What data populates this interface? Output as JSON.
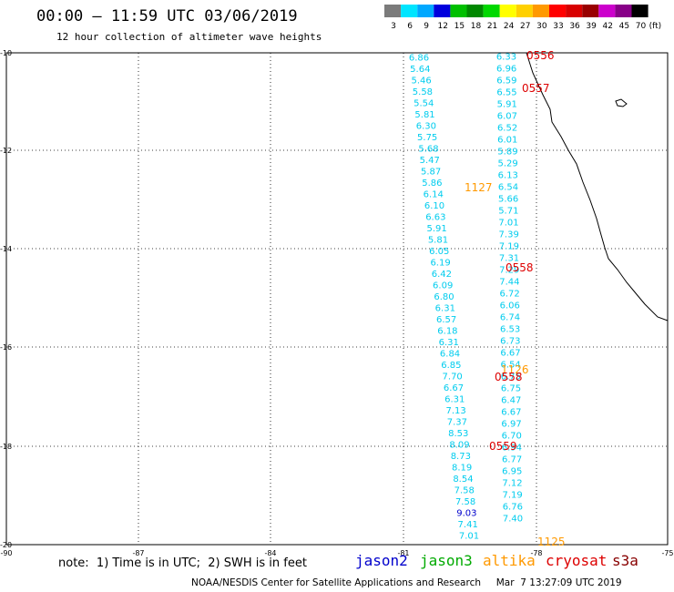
{
  "header": {
    "title": "00:00 – 11:59 UTC 03/06/2019",
    "subtitle": "12 hour collection of altimeter wave heights"
  },
  "colorbar": {
    "unit": "(ft)",
    "labels": [
      "3",
      "6",
      "9",
      "12",
      "15",
      "18",
      "21",
      "24",
      "27",
      "30",
      "33",
      "36",
      "39",
      "42",
      "45",
      "70"
    ],
    "colors": [
      "#7b7b7b",
      "#00e5ff",
      "#00a8ff",
      "#0000dd",
      "#00c000",
      "#008800",
      "#00d800",
      "#ffff00",
      "#ffd000",
      "#ff9900",
      "#ff0000",
      "#d80000",
      "#990000",
      "#cc00cc",
      "#880088",
      "#000000"
    ]
  },
  "axes": {
    "x_ticks": [
      "-90",
      "-87",
      "-84",
      "-81",
      "-78",
      "-75"
    ],
    "y_ticks": [
      "-10",
      "-12",
      "-14",
      "-16",
      "-18",
      "-20"
    ]
  },
  "tracks": [
    {
      "satellite": "cryosat",
      "color": "#00ccee",
      "values": [
        "6.86",
        "5.64",
        "5.46",
        "5.58",
        "5.54",
        "5.81",
        "6.30",
        "5.75",
        "5.68",
        "5.47",
        "5.87",
        "5.86",
        "6.14",
        "6.10",
        "6.63",
        "5.91",
        "5.81",
        "6.05",
        "6.19",
        "6.42",
        "6.09",
        "6.80",
        "6.31",
        "6.57",
        "6.18",
        "6.31",
        "6.84",
        "6.85",
        "7.70",
        "6.67",
        "6.31",
        "7.13",
        "7.37",
        "8.53",
        "8.09",
        "8.73",
        "8.19",
        "8.54",
        "7.58",
        "7.58",
        "9.03",
        "7.41",
        "7.01"
      ]
    },
    {
      "satellite": "cryosat",
      "color": "#00ccee",
      "values": [
        "6.33",
        "6.96",
        "6.59",
        "6.55",
        "5.91",
        "6.07",
        "6.52",
        "6.01",
        "5.89",
        "5.29",
        "6.13",
        "6.54",
        "5.66",
        "5.71",
        "7.01",
        "7.39",
        "7.19",
        "7.31",
        "7.29",
        "7.44",
        "6.72",
        "6.06",
        "6.74",
        "6.53",
        "6.73",
        "6.67",
        "6.54",
        "6.75",
        "6.75",
        "6.47",
        "6.67",
        "6.97",
        "6.70",
        "6.94",
        "6.77",
        "6.95",
        "7.12",
        "7.19",
        "6.76",
        "7.40"
      ]
    }
  ],
  "times": [
    {
      "text": "0556",
      "color": "#dd0000"
    },
    {
      "text": "0557",
      "color": "#dd0000"
    },
    {
      "text": "1127",
      "color": "#ff9900"
    },
    {
      "text": "0558",
      "color": "#dd0000"
    },
    {
      "text": "1126",
      "color": "#ff9900"
    },
    {
      "text": "0558",
      "color": "#dd0000"
    },
    {
      "text": "0559",
      "color": "#dd0000"
    },
    {
      "text": "1125",
      "color": "#ff9900"
    }
  ],
  "footer_note": "note:  1) Time is in UTC;  2) SWH is in feet",
  "legend": [
    {
      "name": "jason2",
      "color": "#0000cc"
    },
    {
      "name": "jason3",
      "color": "#00aa00"
    },
    {
      "name": "altika",
      "color": "#ff9900"
    },
    {
      "name": "cryosat",
      "color": "#dd0000"
    },
    {
      "name": "s3a",
      "color": "#880000"
    }
  ],
  "credit": "NOAA/NESDIS Center for Satellite Applications and Research",
  "timestamp": "Mar  7 13:27:09 UTC 2019"
}
